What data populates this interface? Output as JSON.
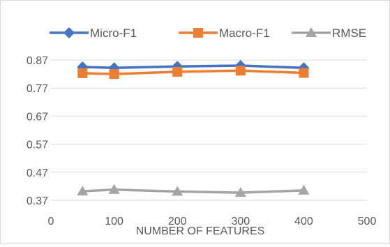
{
  "chart_data": {
    "type": "line",
    "x": [
      50,
      100,
      200,
      300,
      400
    ],
    "series": [
      {
        "name": "Micro-F1",
        "color": "#4472c4",
        "marker": "diamond",
        "values": [
          0.845,
          0.842,
          0.847,
          0.85,
          0.842
        ]
      },
      {
        "name": "Macro-F1",
        "color": "#ed7d31",
        "marker": "square",
        "values": [
          0.823,
          0.82,
          0.828,
          0.832,
          0.824
        ]
      },
      {
        "name": "RMSE",
        "color": "#a5a5a5",
        "marker": "triangle",
        "values": [
          0.402,
          0.408,
          0.401,
          0.397,
          0.405
        ]
      }
    ],
    "xlabel": "NUMBER OF FEATURES",
    "ylabel": "",
    "xlim": [
      0,
      500
    ],
    "ylim": [
      0.37,
      0.87
    ],
    "xticks": [
      0,
      100,
      200,
      300,
      400,
      500
    ],
    "xtick_labels": [
      "0",
      "100",
      "200",
      "300",
      "400",
      "500"
    ],
    "yticks": [
      0.37,
      0.47,
      0.57,
      0.67,
      0.77,
      0.87
    ],
    "ytick_labels": [
      "0.37",
      "0.47",
      "0.57",
      "0.67",
      "0.77",
      "0.87"
    ],
    "grid": "horizontal",
    "legend_position": "top"
  }
}
